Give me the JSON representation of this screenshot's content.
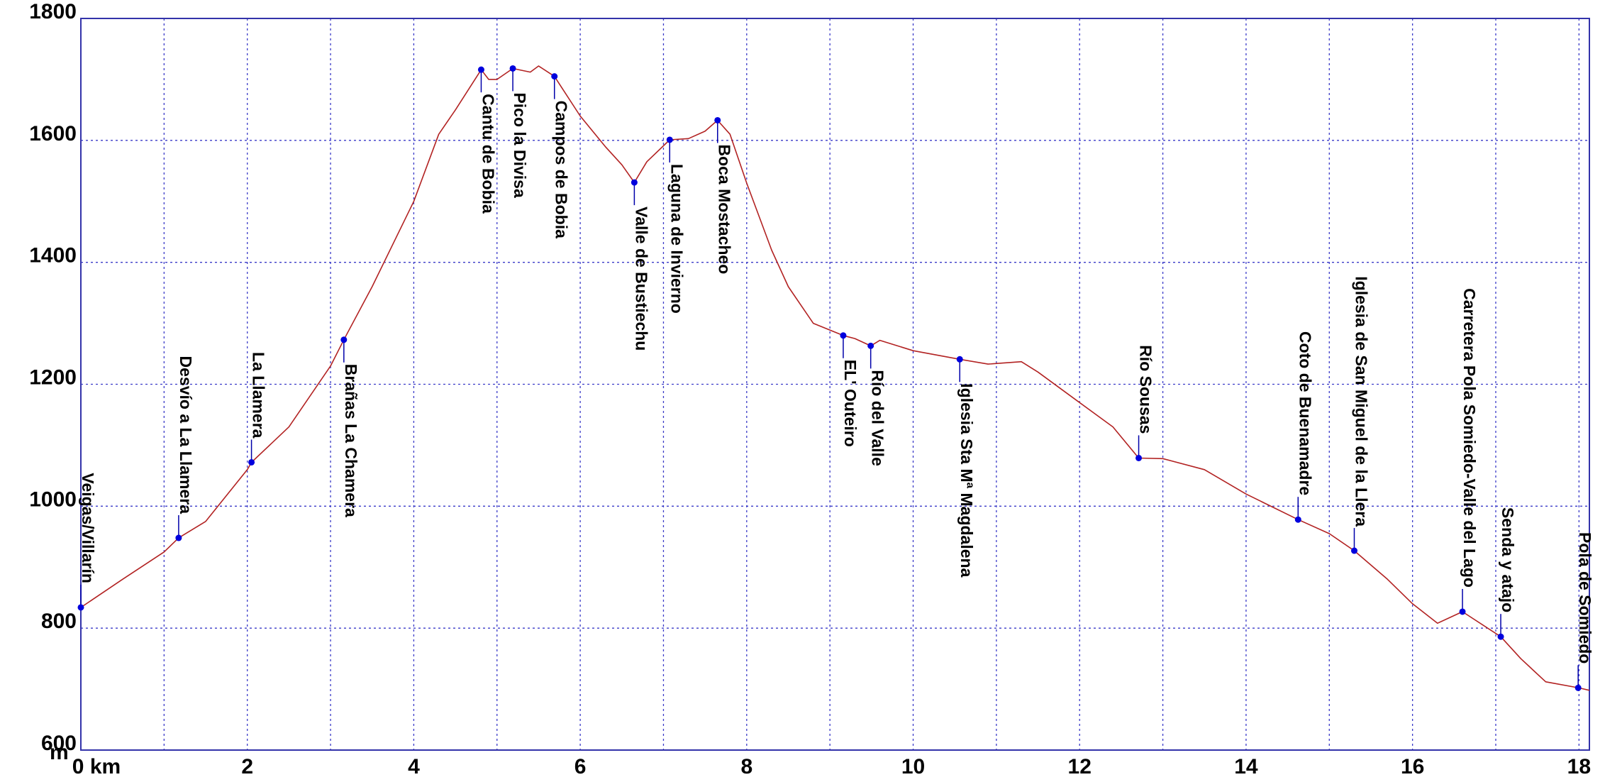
{
  "chart_data": {
    "type": "line",
    "y_label": "m",
    "xlim": [
      0,
      18.125
    ],
    "ylim": [
      600,
      1800
    ],
    "xticks": [
      {
        "value": 0,
        "label": "0 km"
      },
      2,
      4,
      6,
      8,
      10,
      12,
      14,
      16,
      18
    ],
    "minor_xticks": [
      1,
      3,
      5,
      7,
      9,
      11,
      13,
      15,
      17
    ],
    "yticks": [
      600,
      800,
      1000,
      1200,
      1400,
      1600,
      1800
    ],
    "grid": true,
    "profile": {
      "color": "#b22222",
      "x": [
        0,
        0.5,
        1.0,
        1.175,
        1.5,
        2.0,
        2.05,
        2.5,
        3.0,
        3.16,
        3.5,
        4.0,
        4.3,
        4.5,
        4.81,
        4.9,
        5.0,
        5.19,
        5.4,
        5.5,
        5.69,
        6.0,
        6.3,
        6.5,
        6.65,
        6.8,
        7.075,
        7.3,
        7.5,
        7.65,
        7.8,
        8.0,
        8.3,
        8.5,
        8.8,
        9.16,
        9.3,
        9.49,
        9.6,
        10.0,
        10.56,
        10.9,
        11.3,
        11.5,
        12.0,
        12.4,
        12.71,
        13.0,
        13.5,
        14.0,
        14.625,
        15.0,
        15.3,
        15.7,
        16.0,
        16.3,
        16.6,
        17.06,
        17.3,
        17.6,
        18.0,
        18.125
      ],
      "y": [
        834,
        880,
        925,
        948,
        975,
        1060,
        1072,
        1130,
        1230,
        1273,
        1360,
        1500,
        1610,
        1650,
        1716,
        1700,
        1700,
        1718,
        1712,
        1722,
        1705,
        1640,
        1590,
        1560,
        1531,
        1565,
        1601,
        1603,
        1615,
        1633,
        1610,
        1530,
        1420,
        1360,
        1300,
        1280,
        1275,
        1263,
        1272,
        1255,
        1241,
        1233,
        1237,
        1220,
        1170,
        1130,
        1079,
        1078,
        1060,
        1020,
        978,
        955,
        927,
        880,
        840,
        808,
        827,
        786,
        750,
        712,
        702,
        698
      ]
    },
    "waypoints": {
      "color": "#0000dd",
      "labels": [
        "Veigas/Villarín",
        "Desvío a La Llamera",
        "La Llamera",
        "Brañas La Chamera",
        "Cantu de Bobia",
        "Pico la Divisa",
        "Campos de Bobia",
        "Valle de Bustiechu",
        "Laguna de Invierno",
        "Boca Mostacheo",
        "EL' Outeiro",
        "Río del Valle",
        "Iglesia Sta Mª Magdalena",
        "Río Sousas",
        "Coto de Buenamadre",
        "Iglesia de San Miguel de la Llera",
        "Carretera Pola Somiedo-Valle del Lago",
        "Senda y atajo",
        "Pola de Somiedo"
      ],
      "x": [
        0,
        1.175,
        2.05,
        3.16,
        4.81,
        5.19,
        5.69,
        6.65,
        7.075,
        7.65,
        9.16,
        9.49,
        10.56,
        12.71,
        14.625,
        15.3,
        16.6,
        17.06,
        17.99
      ],
      "y": [
        834,
        948,
        1072,
        1273,
        1716,
        1718,
        1705,
        1531,
        1601,
        1633,
        1280,
        1263,
        1241,
        1079,
        978,
        927,
        827,
        786,
        702
      ]
    }
  }
}
